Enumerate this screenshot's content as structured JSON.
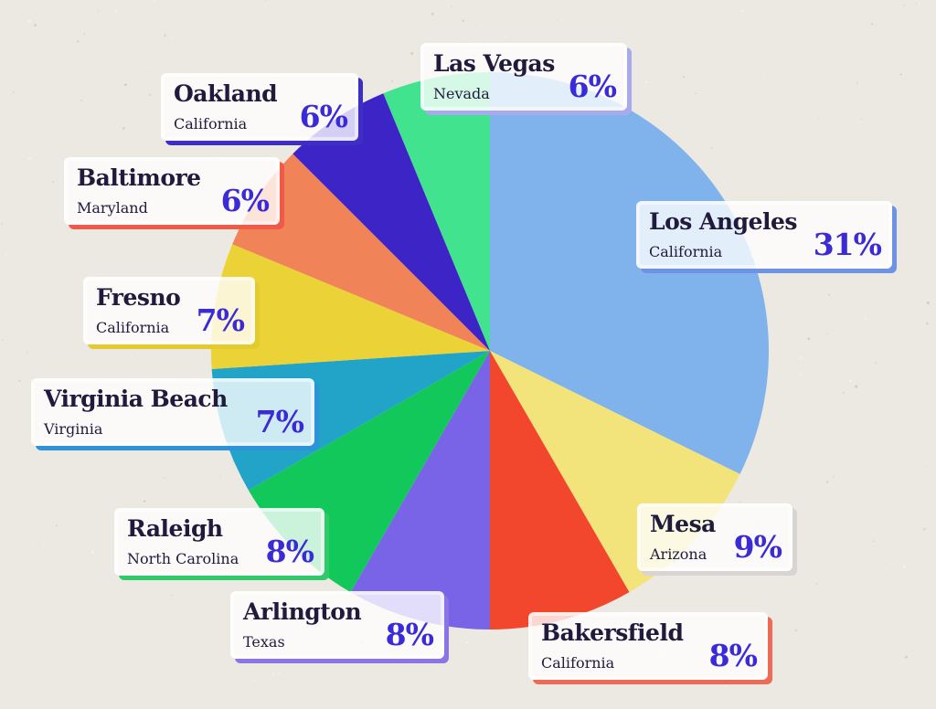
{
  "chart_data": {
    "type": "pie",
    "slices": [
      {
        "city": "Las Vegas",
        "state": "Nevada",
        "value": 6,
        "label": "6%",
        "color": "#41e38f",
        "shadow": "#a9a9ee"
      },
      {
        "city": "Los Angeles",
        "state": "California",
        "value": 31,
        "label": "31%",
        "color": "#80b2ec",
        "shadow": "#6e92e6"
      },
      {
        "city": "Mesa",
        "state": "Arizona",
        "value": 9,
        "label": "9%",
        "color": "#f2e47a",
        "shadow": "#d9d4d4"
      },
      {
        "city": "Bakersfield",
        "state": "California",
        "value": 8,
        "label": "8%",
        "color": "#f2472d",
        "shadow": "#ee6a55"
      },
      {
        "city": "Arlington",
        "state": "Texas",
        "value": 8,
        "label": "8%",
        "color": "#7964e8",
        "shadow": "#8b73e8"
      },
      {
        "city": "Raleigh",
        "state": "North Carolina",
        "value": 8,
        "label": "8%",
        "color": "#12c85a",
        "shadow": "#2fca69"
      },
      {
        "city": "Virginia Beach",
        "state": "Virginia",
        "value": 7,
        "label": "7%",
        "color": "#22a3c8",
        "shadow": "#2e92d6"
      },
      {
        "city": "Fresno",
        "state": "California",
        "value": 7,
        "label": "7%",
        "color": "#ead237",
        "shadow": "#e3cb2e"
      },
      {
        "city": "Baltimore",
        "state": "Maryland",
        "value": 6,
        "label": "6%",
        "color": "#f08358",
        "shadow": "#f05a4a"
      },
      {
        "city": "Oakland",
        "state": "California",
        "value": 6,
        "label": "6%",
        "color": "#3c24c6",
        "shadow": "#3f2ec4"
      }
    ]
  }
}
